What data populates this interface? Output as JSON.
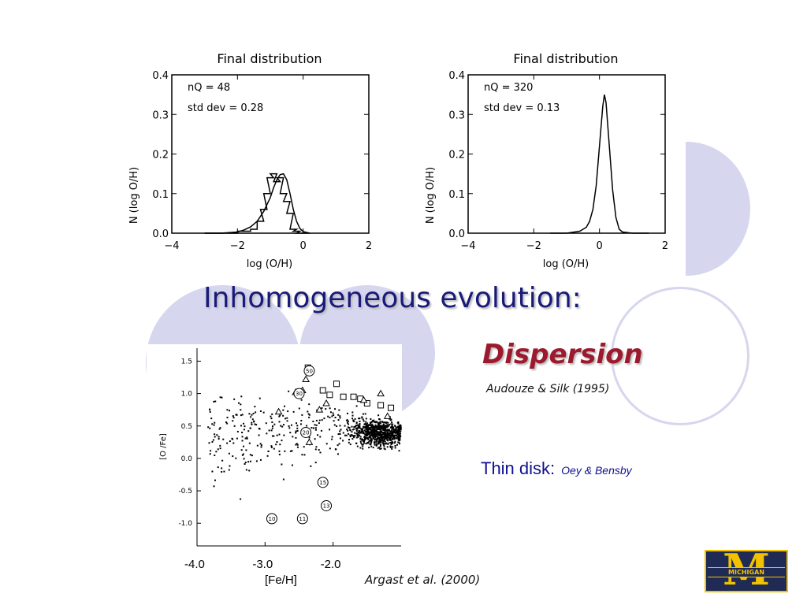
{
  "slide": {
    "title": "Inhomogeneous evolution:",
    "subtitle": "Dispersion",
    "citation_1": "Audouze & Silk (1995)",
    "thin_disk_label": "Thin disk:",
    "thin_disk_ref": "Oey & Bensby",
    "citation_2": "Argast et al.  (2000)",
    "logo_text": "MICHIGAN",
    "logo_letter": "M",
    "colors": {
      "title": "#1a1a7a",
      "subtitle": "#9c1a2e",
      "deco_circles": "#d6d6ee",
      "logo_bg": "#1f2a55",
      "logo_gold": "#f2c200"
    }
  },
  "chart_data": [
    {
      "type": "line",
      "title": "Final distribution",
      "xlabel": "log (O/H)",
      "ylabel": "N (log O/H)",
      "xlim": [
        -4,
        2
      ],
      "ylim": [
        0,
        0.4
      ],
      "xticks": [
        "-4",
        "-2",
        "0",
        "2"
      ],
      "yticks": [
        "0.0",
        "0.1",
        "0.2",
        "0.3",
        "0.4"
      ],
      "annotations": [
        "nQ = 48",
        "std dev = 0.28"
      ],
      "series": [
        {
          "style": "histogram",
          "x": [
            -3.0,
            -2.8,
            -2.6,
            -2.4,
            -2.2,
            -2.0,
            -1.8,
            -1.6,
            -1.4,
            -1.3,
            -1.2,
            -1.1,
            -1.0,
            -0.9,
            -0.8,
            -0.7,
            -0.6,
            -0.5,
            -0.4,
            -0.3,
            -0.2,
            -0.1,
            0.0
          ],
          "y": [
            0.0,
            0.0,
            0.0,
            0.0,
            0.0,
            0.005,
            0.005,
            0.01,
            0.03,
            0.06,
            0.1,
            0.14,
            0.15,
            0.13,
            0.14,
            0.1,
            0.08,
            0.05,
            0.01,
            0.005,
            0.0,
            0.0,
            0.0
          ]
        },
        {
          "style": "curve",
          "x": [
            -3.0,
            -2.5,
            -2.0,
            -1.8,
            -1.6,
            -1.4,
            -1.2,
            -1.0,
            -0.9,
            -0.8,
            -0.7,
            -0.6,
            -0.5,
            -0.4,
            -0.3,
            -0.2,
            -0.1,
            0.0,
            0.2
          ],
          "y": [
            0.0,
            0.0,
            0.003,
            0.008,
            0.016,
            0.03,
            0.055,
            0.09,
            0.115,
            0.135,
            0.148,
            0.15,
            0.135,
            0.1,
            0.06,
            0.03,
            0.012,
            0.004,
            0.0
          ]
        }
      ]
    },
    {
      "type": "line",
      "title": "Final distribution",
      "xlabel": "log (O/H)",
      "ylabel": "N (log O/H)",
      "xlim": [
        -4,
        2
      ],
      "ylim": [
        0,
        0.4
      ],
      "xticks": [
        "-4",
        "-2",
        "0",
        "2"
      ],
      "yticks": [
        "0.0",
        "0.1",
        "0.2",
        "0.3",
        "0.4"
      ],
      "annotations": [
        "nQ = 320",
        "std dev = 0.13"
      ],
      "series": [
        {
          "style": "curve",
          "x": [
            -1.5,
            -1.0,
            -0.6,
            -0.4,
            -0.3,
            -0.2,
            -0.1,
            0.0,
            0.1,
            0.15,
            0.2,
            0.3,
            0.4,
            0.5,
            0.6,
            0.7,
            1.0,
            1.5
          ],
          "y": [
            0.0,
            0.0,
            0.005,
            0.015,
            0.03,
            0.06,
            0.12,
            0.22,
            0.32,
            0.35,
            0.33,
            0.22,
            0.11,
            0.04,
            0.01,
            0.003,
            0.0,
            0.0
          ]
        }
      ]
    },
    {
      "type": "scatter",
      "xlabel": "[Fe/H]",
      "ylabel": "[O /Fe]",
      "xlim": [
        -4.0,
        -1.0
      ],
      "ylim": [
        -1.35,
        1.7
      ],
      "xticks": [
        "-4.0",
        "-3.0",
        "-2.0"
      ],
      "yticks": [
        "1.5",
        "1.0",
        "0.5",
        "0.0",
        "-0.5",
        "-1.0"
      ],
      "circled_labels": [
        {
          "x": -2.35,
          "y": 1.35,
          "text": "50"
        },
        {
          "x": -2.5,
          "y": 1.0,
          "text": "30"
        },
        {
          "x": -2.4,
          "y": 0.4,
          "text": "20"
        },
        {
          "x": -2.15,
          "y": -0.37,
          "text": "15"
        },
        {
          "x": -2.1,
          "y": -0.73,
          "text": "13"
        },
        {
          "x": -2.9,
          "y": -0.93,
          "text": "10"
        },
        {
          "x": -2.45,
          "y": -0.93,
          "text": "11"
        }
      ],
      "squares": [
        [
          -2.37,
          1.4
        ],
        [
          -1.95,
          1.15
        ],
        [
          -2.15,
          1.05
        ],
        [
          -1.7,
          0.95
        ],
        [
          -1.6,
          0.92
        ],
        [
          -1.85,
          0.95
        ],
        [
          -1.5,
          0.85
        ],
        [
          -1.3,
          0.82
        ],
        [
          -1.15,
          0.78
        ],
        [
          -2.05,
          0.98
        ]
      ],
      "triangles": [
        [
          -2.4,
          1.22
        ],
        [
          -2.55,
          1.02
        ],
        [
          -2.45,
          1.05
        ],
        [
          -1.3,
          1.0
        ],
        [
          -2.2,
          0.75
        ],
        [
          -2.8,
          0.72
        ],
        [
          -1.2,
          0.65
        ],
        [
          -2.35,
          0.25
        ],
        [
          -1.55,
          0.9
        ],
        [
          -2.1,
          0.85
        ]
      ]
    }
  ]
}
